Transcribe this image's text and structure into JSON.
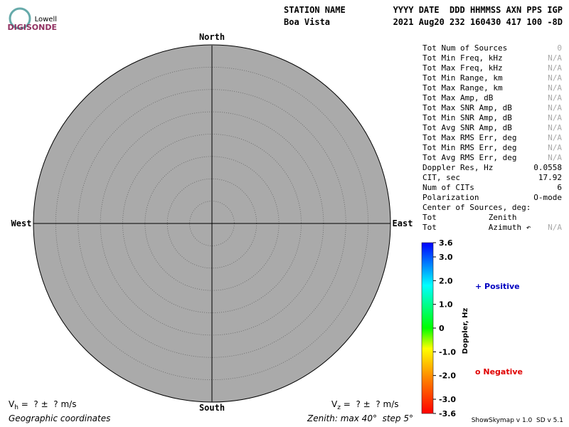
{
  "logo": {
    "line1": "Lowell",
    "line2": "DIGISONDE"
  },
  "header": {
    "station_label": "STATION NAME",
    "station_value": "Boa Vista",
    "fields_label": "YYYY DATE  DDD HHMMSS AXN PPS IGP",
    "fields_value": "2021 Aug20 232 160430 417 100 -8D"
  },
  "compass": {
    "north": "North",
    "south": "South",
    "west": "West",
    "east": "East"
  },
  "stats": [
    {
      "label": "Tot Num of Sources",
      "value": "0",
      "color": "#aaaaaa"
    },
    {
      "label": "Tot Min Freq, kHz",
      "value": "N/A",
      "color": "#aaaaaa"
    },
    {
      "label": "Tot Max Freq, kHz",
      "value": "N/A",
      "color": "#aaaaaa"
    },
    {
      "label": "Tot Min Range, km",
      "value": "N/A",
      "color": "#aaaaaa"
    },
    {
      "label": "Tot Max Range, km",
      "value": "N/A",
      "color": "#aaaaaa"
    },
    {
      "label": "Tot Max Amp, dB",
      "value": "N/A",
      "color": "#aaaaaa"
    },
    {
      "label": "Tot Max SNR Amp, dB",
      "value": "N/A",
      "color": "#aaaaaa"
    },
    {
      "label": "Tot Min SNR Amp, dB",
      "value": "N/A",
      "color": "#aaaaaa"
    },
    {
      "label": "Tot Avg SNR Amp, dB",
      "value": "N/A",
      "color": "#aaaaaa"
    },
    {
      "label": "Tot Max RMS Err, deg",
      "value": "N/A",
      "color": "#aaaaaa"
    },
    {
      "label": "Tot Min RMS Err, deg",
      "value": "N/A",
      "color": "#aaaaaa"
    },
    {
      "label": "Tot Avg RMS Err, deg",
      "value": "N/A",
      "color": "#aaaaaa"
    },
    {
      "label": "Doppler Res, Hz",
      "value": "0.0558",
      "color": "#000000"
    },
    {
      "label": "CIT, sec",
      "value": "17.92",
      "color": "#000000"
    },
    {
      "label": "Num of CITs",
      "value": "6",
      "color": "#000000"
    },
    {
      "label": "Polarization",
      "value": "O-mode",
      "color": "#000000"
    },
    {
      "label": "Center of Sources, deg:"
    },
    {
      "label": "Tot           Zenith"
    },
    {
      "label": "Tot           Azimuth ↶",
      "value": "N/A",
      "color": "#aaaaaa"
    }
  ],
  "colorbar": {
    "label": "Doppler, Hz",
    "lim": [
      -3.6,
      3.6
    ],
    "ticks": [
      3.6,
      {
        "value": 3,
        "label": "3.0"
      },
      {
        "value": 2,
        "label": "2.0"
      },
      {
        "value": 1,
        "label": "1.0"
      },
      0,
      {
        "value": -1,
        "label": "-1.0"
      },
      {
        "value": -2,
        "label": "-2.0"
      },
      {
        "value": -3,
        "label": "-3.0"
      },
      -3.6
    ]
  },
  "legend": {
    "positive": "+ Positive",
    "positive_color": "#0000c0",
    "negative": "o Negative",
    "negative_color": "#e00000"
  },
  "footer": {
    "vh_main": "V",
    "vh_sub": "h",
    "vh_rest": " =  ? ±  ? m/s",
    "vz_main": "V",
    "vz_sub": "z",
    "vz_rest": " =  ? ±  ? m/s",
    "coords": "Geographic coordinates",
    "zenith": "Zenith: max 40°  step 5°",
    "version": "ShowSkymap v 1.0  SD v 5.1"
  }
}
